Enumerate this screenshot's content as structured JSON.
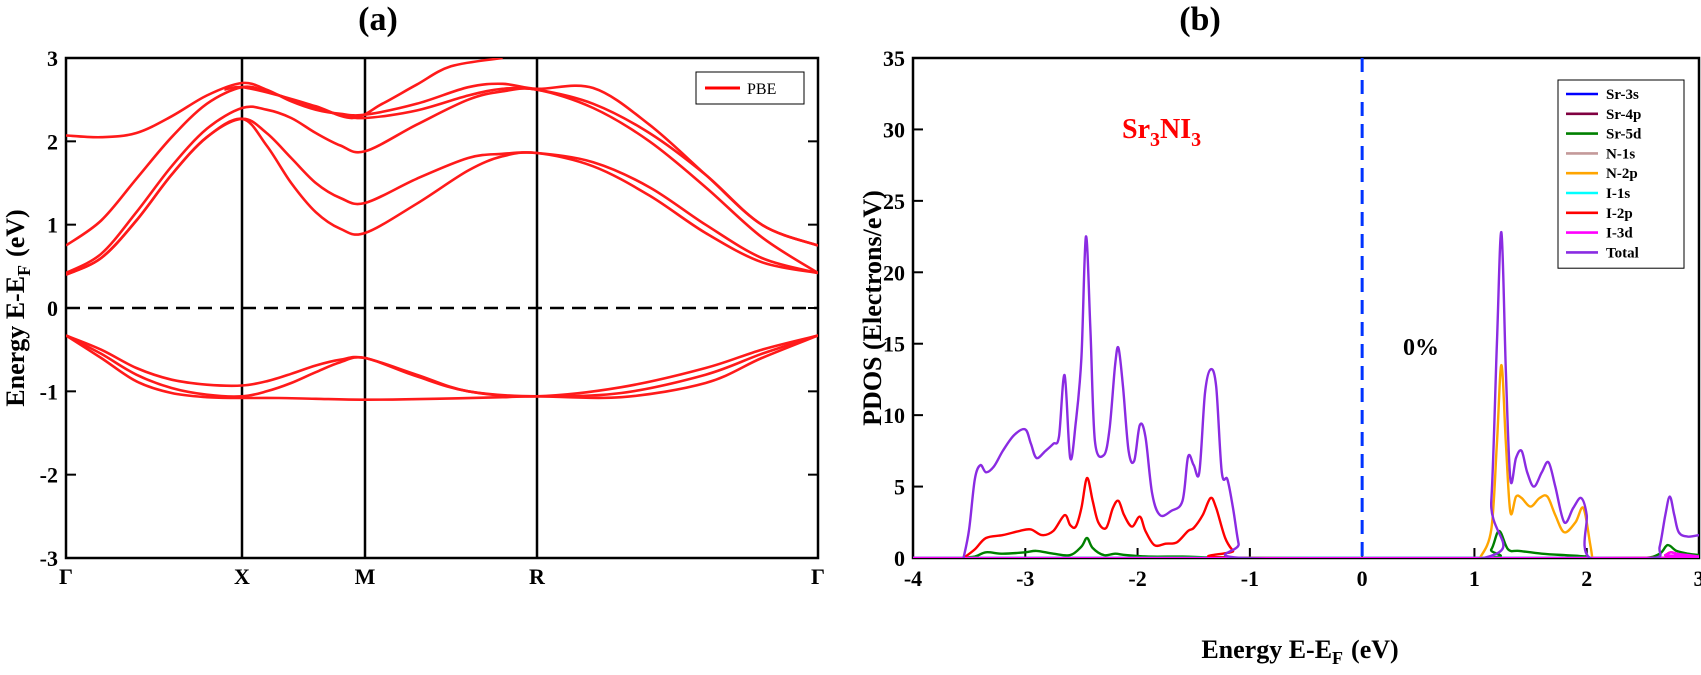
{
  "panels": {
    "a_label": "(a)",
    "b_label": "(b)"
  },
  "chart_data": [
    {
      "type": "line",
      "panel": "(a)",
      "title": "",
      "ylabel": "Energy E-E",
      "ylabel_sub": "F",
      "ylabel_unit": "(eV)",
      "ylim": [
        -3,
        3
      ],
      "yticks": [
        -3,
        -2,
        -1,
        0,
        1,
        2,
        3
      ],
      "xticks": [
        "Γ",
        "X",
        "M",
        "R",
        "Γ"
      ],
      "xtick_positions": [
        0,
        1,
        2,
        3,
        4
      ],
      "legend": [
        {
          "name": "PBE",
          "color": "#ff0000"
        }
      ],
      "legend_position": "top-right",
      "fermi_level": 0,
      "series": [
        {
          "name": "band-c1",
          "x": [
            0,
            0.2,
            0.4,
            0.6,
            0.8,
            1.0,
            1.2,
            1.4,
            1.6,
            1.8,
            2.0,
            2.3,
            2.6,
            2.8,
            3.0,
            3.2,
            3.4,
            3.6,
            3.8,
            4.0
          ],
          "values": [
            2.07,
            2.05,
            2.1,
            2.3,
            2.55,
            2.7,
            2.62,
            2.48,
            2.38,
            2.33,
            2.32,
            2.45,
            2.65,
            2.69,
            2.63,
            2.64,
            2.2,
            1.6,
            1.0,
            0.75
          ]
        },
        {
          "name": "band-c2",
          "x": [
            0,
            0.2,
            0.4,
            0.6,
            0.8,
            1.0,
            1.2,
            1.4,
            1.6,
            1.8,
            2.0,
            2.3,
            2.6,
            2.8,
            3.0,
            3.2,
            3.4,
            3.6,
            3.8,
            4.0
          ],
          "values": [
            0.75,
            1.05,
            1.55,
            2.05,
            2.45,
            2.65,
            2.6,
            2.5,
            2.4,
            2.32,
            2.28,
            2.37,
            2.55,
            2.63,
            2.62,
            2.45,
            2.1,
            1.6,
            1.0,
            0.75
          ]
        },
        {
          "name": "band-c3",
          "x": [
            0,
            0.2,
            0.4,
            0.6,
            0.8,
            1.0,
            1.2,
            1.4,
            1.6,
            1.8,
            2.0,
            2.3,
            2.6,
            2.8,
            3.0,
            3.2,
            3.4,
            3.6,
            3.8,
            4.0
          ],
          "values": [
            0.42,
            0.65,
            1.15,
            1.7,
            2.15,
            2.4,
            2.38,
            2.28,
            2.1,
            1.95,
            1.88,
            2.2,
            2.5,
            2.6,
            2.62,
            2.4,
            2.0,
            1.45,
            0.85,
            0.42
          ]
        },
        {
          "name": "band-c4",
          "x": [
            0,
            0.2,
            0.4,
            0.6,
            0.8,
            1.0,
            1.2,
            1.4,
            1.6,
            1.8,
            2.0,
            2.3,
            2.6,
            2.8,
            3.0,
            3.2,
            3.4,
            3.6,
            3.8,
            4.0
          ],
          "values": [
            0.4,
            0.6,
            1.05,
            1.6,
            2.05,
            2.27,
            2.1,
            1.8,
            1.5,
            1.32,
            1.26,
            1.55,
            1.8,
            1.85,
            1.86,
            1.75,
            1.45,
            1.0,
            0.6,
            0.42
          ]
        },
        {
          "name": "band-c5",
          "x": [
            0,
            0.2,
            0.4,
            0.6,
            0.8,
            1.0,
            1.2,
            1.4,
            1.6,
            1.8,
            2.0,
            2.3,
            2.6,
            2.8,
            3.0,
            3.2,
            3.4,
            3.6,
            3.8,
            4.0
          ],
          "values": [
            0.4,
            0.6,
            1.05,
            1.6,
            2.05,
            2.27,
            1.95,
            1.5,
            1.15,
            0.95,
            0.9,
            1.25,
            1.65,
            1.82,
            1.86,
            1.7,
            1.35,
            0.9,
            0.55,
            0.42
          ]
        },
        {
          "name": "band-c6",
          "x": [
            0.9,
            1.0,
            1.3,
            1.6,
            1.9,
            2.1,
            2.3,
            2.5,
            2.8
          ],
          "values": [
            2.62,
            2.65,
            2.55,
            2.42,
            2.28,
            2.45,
            2.68,
            2.9,
            3.0
          ]
        },
        {
          "name": "band-v1",
          "x": [
            0,
            0.2,
            0.4,
            0.6,
            0.8,
            1.0,
            1.2,
            1.4,
            1.6,
            1.8,
            2.0,
            2.3,
            2.6,
            3.0,
            3.3,
            3.6,
            3.8,
            4.0
          ],
          "values": [
            -0.33,
            -0.5,
            -0.72,
            -0.86,
            -0.92,
            -0.93,
            -0.88,
            -0.79,
            -0.69,
            -0.62,
            -0.6,
            -0.8,
            -1.0,
            -1.06,
            -0.95,
            -0.72,
            -0.5,
            -0.33
          ]
        },
        {
          "name": "band-v2",
          "x": [
            0,
            0.2,
            0.4,
            0.6,
            0.8,
            1.0,
            1.2,
            1.4,
            1.6,
            1.8,
            2.0,
            2.3,
            2.6,
            3.0,
            3.3,
            3.6,
            3.8,
            4.0
          ],
          "values": [
            -0.33,
            -0.55,
            -0.8,
            -0.96,
            -1.04,
            -1.06,
            -1.0,
            -0.9,
            -0.77,
            -0.65,
            -0.6,
            -0.82,
            -1.0,
            -1.06,
            -1.02,
            -0.8,
            -0.55,
            -0.33
          ]
        },
        {
          "name": "band-v3",
          "x": [
            0,
            0.2,
            0.4,
            0.6,
            0.8,
            1.0,
            1.3,
            1.6,
            2.0,
            2.4,
            2.8,
            3.0,
            3.3,
            3.6,
            3.8,
            4.0
          ],
          "values": [
            -0.33,
            -0.6,
            -0.88,
            -1.02,
            -1.07,
            -1.08,
            -1.08,
            -1.09,
            -1.1,
            -1.09,
            -1.07,
            -1.06,
            -1.07,
            -0.9,
            -0.6,
            -0.33
          ]
        }
      ]
    },
    {
      "type": "line",
      "panel": "(b)",
      "title": "",
      "xlabel": "Energy E-E",
      "xlabel_sub": "F",
      "xlabel_unit": "(eV)",
      "ylabel": "PDOS (Electrons/eV)",
      "xlim": [
        -4,
        3
      ],
      "ylim": [
        0,
        35
      ],
      "xticks": [
        -4,
        -3,
        -2,
        -1,
        0,
        1,
        2,
        3
      ],
      "yticks": [
        0,
        5,
        10,
        15,
        20,
        25,
        30,
        35
      ],
      "fermi_level": 0,
      "annotations": {
        "compound_parts": [
          {
            "t": "Sr",
            "sub": false
          },
          {
            "t": "3",
            "sub": true
          },
          {
            "t": "NI",
            "sub": false
          },
          {
            "t": "3",
            "sub": true
          }
        ],
        "strain": "0%"
      },
      "legend_position": "top-right",
      "series": [
        {
          "name": "Sr-3s",
          "color": "#0000ff",
          "x": [
            -4,
            3
          ],
          "values": [
            0,
            0
          ]
        },
        {
          "name": "Sr-4p",
          "color": "#800040",
          "x": [
            -4,
            3
          ],
          "values": [
            0,
            0
          ]
        },
        {
          "name": "Sr-5d",
          "color": "#008000",
          "x": [
            -3.6,
            -3.45,
            -3.35,
            -3.2,
            -3.0,
            -2.9,
            -2.75,
            -2.6,
            -2.5,
            -2.45,
            -2.4,
            -2.3,
            -2.2,
            -2.1,
            -1.9,
            -1.6,
            -1.4,
            -1.2,
            -1.05,
            1.05,
            1.15,
            1.22,
            1.3,
            1.4,
            1.6,
            1.8,
            2.0,
            2.05,
            2.5,
            2.65,
            2.72,
            2.8,
            2.9,
            3.0
          ],
          "values": [
            0,
            0.1,
            0.4,
            0.3,
            0.4,
            0.5,
            0.3,
            0.2,
            0.8,
            1.4,
            0.7,
            0.2,
            0.3,
            0.2,
            0.1,
            0.1,
            0.05,
            0.05,
            0,
            0,
            0.6,
            1.9,
            0.6,
            0.5,
            0.3,
            0.2,
            0.1,
            0,
            0,
            0.3,
            0.9,
            0.5,
            0.3,
            0.2
          ]
        },
        {
          "name": "N-1s",
          "color": "#c49a9a",
          "x": [
            -4,
            3
          ],
          "values": [
            0,
            0
          ]
        },
        {
          "name": "N-2p",
          "color": "#ffa500",
          "x": [
            1.05,
            1.15,
            1.2,
            1.24,
            1.28,
            1.32,
            1.37,
            1.42,
            1.5,
            1.58,
            1.65,
            1.72,
            1.8,
            1.9,
            1.97,
            2.03,
            2.05
          ],
          "values": [
            0,
            2.0,
            8.0,
            13.5,
            8.0,
            3.2,
            4.3,
            4.2,
            3.6,
            4.2,
            4.3,
            3.0,
            1.8,
            2.5,
            3.5,
            1.0,
            0
          ]
        },
        {
          "name": "I-1s",
          "color": "#00ffff",
          "x": [
            -4,
            3
          ],
          "values": [
            0,
            0
          ]
        },
        {
          "name": "I-2p",
          "color": "#ff0000",
          "x": [
            -3.55,
            -3.45,
            -3.35,
            -3.2,
            -3.05,
            -2.95,
            -2.85,
            -2.75,
            -2.65,
            -2.6,
            -2.55,
            -2.5,
            -2.45,
            -2.4,
            -2.35,
            -2.28,
            -2.22,
            -2.17,
            -2.12,
            -2.05,
            -1.98,
            -1.93,
            -1.85,
            -1.75,
            -1.65,
            -1.55,
            -1.5,
            -1.42,
            -1.35,
            -1.3,
            -1.22,
            -1.15,
            -1.08,
            2.6,
            2.7,
            2.75,
            2.85,
            3.0
          ],
          "values": [
            0,
            0.6,
            1.4,
            1.6,
            1.9,
            2.0,
            1.6,
            1.9,
            3.0,
            2.3,
            2.2,
            3.5,
            5.6,
            4.0,
            2.5,
            2.1,
            3.5,
            4.0,
            3.0,
            2.2,
            2.9,
            1.9,
            0.9,
            1.0,
            1.1,
            1.9,
            2.1,
            3.0,
            4.2,
            3.5,
            1.4,
            0.5,
            0,
            0,
            0.2,
            0.4,
            0.2,
            0.1
          ]
        },
        {
          "name": "I-3d",
          "color": "#ff00ff",
          "x": [
            -4,
            2.6,
            2.7,
            2.75,
            2.8,
            2.9,
            3.0
          ],
          "values": [
            0,
            0,
            0.2,
            0.4,
            0.3,
            0.2,
            0.1
          ]
        },
        {
          "name": "Total",
          "color": "#8a2be2",
          "x": [
            -3.55,
            -3.5,
            -3.45,
            -3.4,
            -3.35,
            -3.28,
            -3.2,
            -3.1,
            -3.0,
            -2.95,
            -2.9,
            -2.82,
            -2.75,
            -2.7,
            -2.65,
            -2.6,
            -2.55,
            -2.5,
            -2.46,
            -2.42,
            -2.38,
            -2.3,
            -2.25,
            -2.2,
            -2.17,
            -2.13,
            -2.08,
            -2.03,
            -1.98,
            -1.93,
            -1.87,
            -1.8,
            -1.7,
            -1.6,
            -1.55,
            -1.5,
            -1.45,
            -1.4,
            -1.35,
            -1.3,
            -1.25,
            -1.2,
            -1.15,
            -1.1,
            -1.05,
            1.08,
            1.15,
            1.2,
            1.24,
            1.28,
            1.32,
            1.37,
            1.42,
            1.47,
            1.53,
            1.6,
            1.66,
            1.72,
            1.8,
            1.88,
            1.95,
            2.0,
            2.03,
            2.6,
            2.65,
            2.7,
            2.74,
            2.78,
            2.82,
            2.9,
            3.0
          ],
          "values": [
            0,
            2.0,
            5.5,
            6.5,
            6.0,
            6.4,
            7.5,
            8.6,
            9.0,
            8.0,
            7.0,
            7.5,
            8.0,
            8.5,
            12.8,
            7.0,
            9.5,
            14.0,
            22.5,
            16.0,
            8.2,
            7.2,
            9.0,
            13.5,
            14.7,
            12.0,
            7.5,
            6.8,
            9.3,
            8.5,
            4.5,
            3.0,
            3.3,
            4.0,
            7.1,
            6.5,
            6.0,
            11.5,
            13.2,
            12.0,
            6.0,
            5.5,
            3.5,
            1.0,
            0,
            0,
            4.0,
            15.0,
            22.8,
            13.0,
            5.5,
            7.0,
            7.5,
            6.0,
            5.0,
            6.0,
            6.7,
            5.0,
            2.5,
            3.5,
            4.2,
            3.0,
            0,
            0,
            0.8,
            3.0,
            4.3,
            3.0,
            1.8,
            1.5,
            1.6
          ]
        }
      ]
    }
  ]
}
